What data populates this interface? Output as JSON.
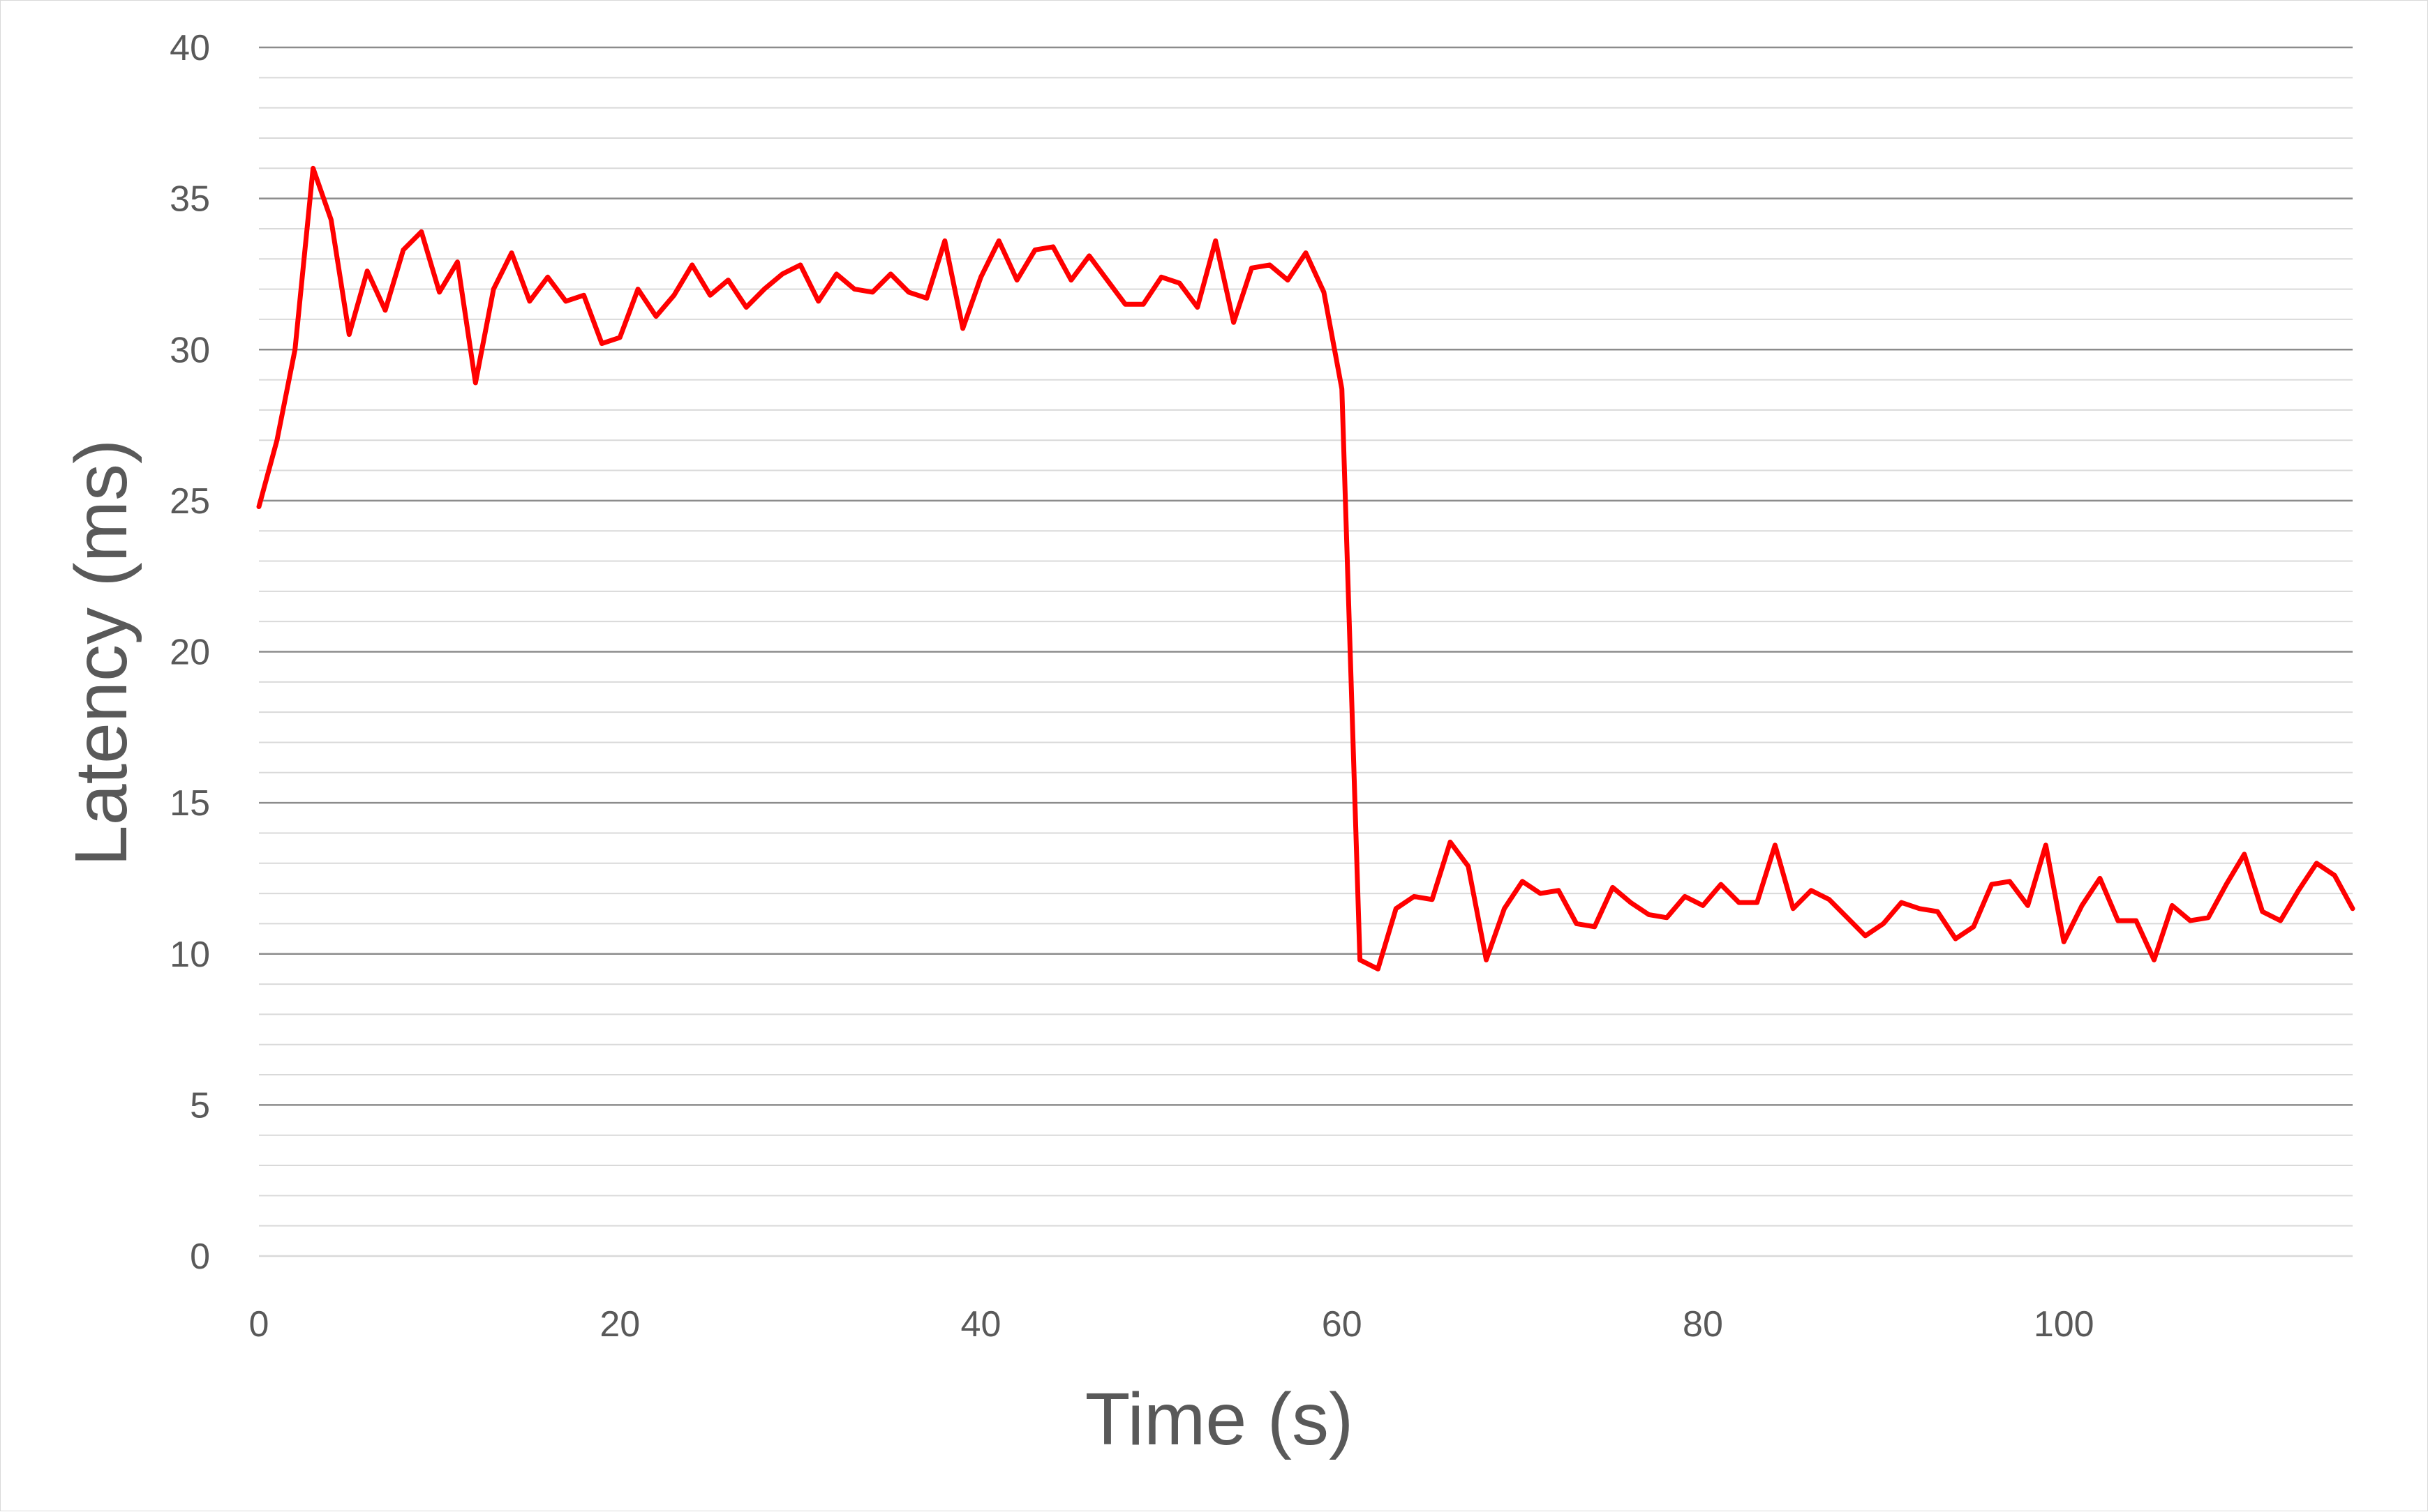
{
  "chart_data": {
    "type": "line",
    "title": "",
    "xlabel": "Time (s)",
    "ylabel": "Latency (ms)",
    "xlim": [
      0,
      116
    ],
    "ylim": [
      0,
      40
    ],
    "x_ticks": [
      0,
      20,
      40,
      60,
      80,
      100
    ],
    "y_ticks": [
      0,
      5,
      10,
      15,
      20,
      25,
      30,
      35,
      40
    ],
    "y_minor_step": 1,
    "grid": true,
    "legend": "none",
    "colors": {
      "series": "#ff0000",
      "major_grid": "#8c8c8c",
      "minor_grid": "#d9d9d9",
      "text": "#595959"
    },
    "series": [
      {
        "x": [
          0,
          1,
          2,
          3,
          4,
          5,
          6,
          7,
          8,
          9,
          10,
          11,
          12,
          13,
          14,
          15,
          16,
          17,
          18,
          19,
          20,
          21,
          22,
          23,
          24,
          25,
          26,
          27,
          28,
          29,
          30,
          31,
          32,
          33,
          34,
          35,
          36,
          37,
          38,
          39,
          40,
          41,
          42,
          43,
          44,
          45,
          46,
          47,
          48,
          49,
          50,
          51,
          52,
          53,
          54,
          55,
          56,
          57,
          58,
          59,
          60,
          61,
          62,
          63,
          64,
          65,
          66,
          67,
          68,
          69,
          70,
          71,
          72,
          73,
          74,
          75,
          76,
          77,
          78,
          79,
          80,
          81,
          82,
          83,
          84,
          85,
          86,
          87,
          88,
          89,
          90,
          91,
          92,
          93,
          94,
          95,
          96,
          97,
          98,
          99,
          100,
          101,
          102,
          103,
          104,
          105,
          106,
          107,
          108,
          109,
          110,
          111,
          112,
          113,
          114,
          115,
          116
        ],
        "values": [
          24.8,
          27.0,
          30.0,
          36.0,
          34.3,
          30.5,
          32.6,
          31.3,
          33.3,
          33.9,
          31.9,
          32.9,
          28.9,
          32.0,
          33.2,
          31.6,
          32.4,
          31.6,
          31.8,
          30.2,
          30.4,
          32.0,
          31.1,
          31.8,
          32.8,
          31.8,
          32.3,
          31.4,
          32.0,
          32.5,
          32.8,
          31.6,
          32.5,
          32.0,
          31.9,
          32.5,
          31.9,
          31.7,
          33.6,
          30.7,
          32.4,
          33.6,
          32.3,
          33.3,
          33.4,
          32.3,
          33.1,
          32.3,
          31.5,
          31.5,
          32.4,
          32.2,
          31.4,
          33.6,
          30.9,
          32.7,
          32.8,
          32.3,
          33.2,
          31.9,
          28.7,
          9.8,
          9.5,
          11.5,
          11.9,
          11.8,
          13.7,
          12.9,
          9.8,
          11.5,
          12.4,
          12.0,
          12.1,
          11.0,
          10.9,
          12.2,
          11.7,
          11.3,
          11.2,
          11.9,
          11.6,
          12.3,
          11.7,
          11.7,
          13.6,
          11.5,
          12.1,
          11.8,
          11.2,
          10.6,
          11.0,
          11.7,
          11.5,
          11.4,
          10.5,
          10.9,
          12.3,
          12.4,
          11.6,
          13.6,
          10.4,
          11.6,
          12.5,
          11.1,
          11.1,
          9.8,
          11.6,
          11.1,
          11.2,
          12.3,
          13.3,
          11.4,
          11.1,
          12.1,
          13.0,
          12.6,
          11.5
        ]
      }
    ]
  }
}
